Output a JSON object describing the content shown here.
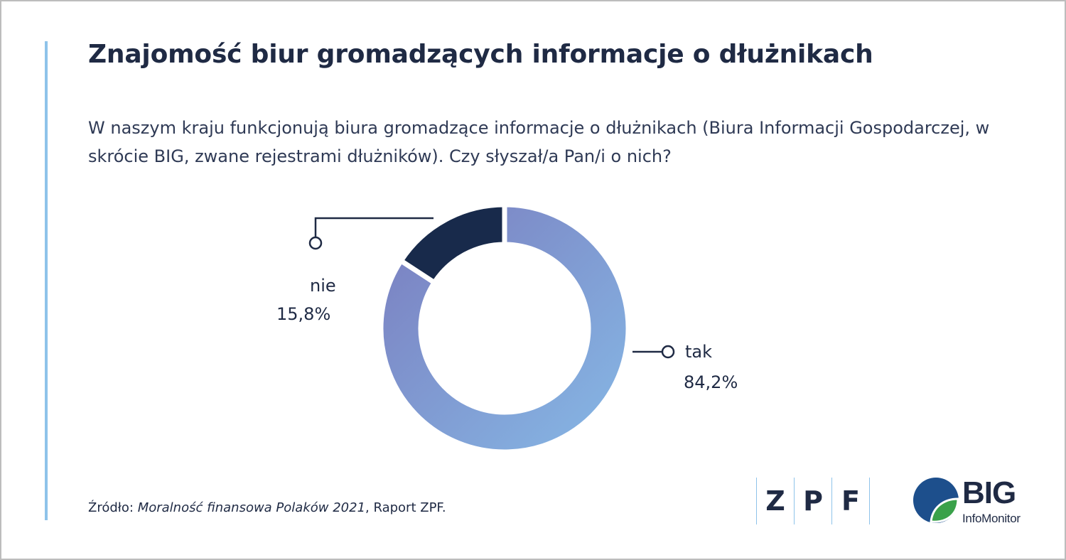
{
  "header": {
    "title": "Znajomość biur gromadzących informacje o dłużnikach",
    "subtitle": "W naszym kraju funkcjonują biura gromadzące informacje o dłużnikach (Biura Informacji Gospodarczej, w skrócie BIG, zwane rejestrami dłużników). Czy słyszał/a Pan/i o nich?"
  },
  "chart_data": {
    "type": "pie",
    "variant": "donut",
    "title": "Znajomość biur gromadzących informacje o dłużnikach",
    "categories": [
      "tak",
      "nie"
    ],
    "values": [
      84.2,
      15.8
    ],
    "value_labels": [
      "84,2%",
      "15,8%"
    ],
    "colors": [
      "#86b9e6",
      "#182a4b"
    ],
    "gradient": [
      "#7a7cbe",
      "#86b9e6"
    ]
  },
  "footer": {
    "source_prefix": "Źródło: ",
    "source_title": "Moralność finansowa Polaków 2021",
    "source_suffix": ", Raport ZPF."
  },
  "logos": {
    "zpf": [
      "Z",
      "P",
      "F"
    ],
    "big_main": "BIG",
    "big_sub": "InfoMonitor",
    "colors": {
      "navy": "#1d4f8c",
      "green": "#3aa14a",
      "accent": "#8ec3ea"
    }
  }
}
